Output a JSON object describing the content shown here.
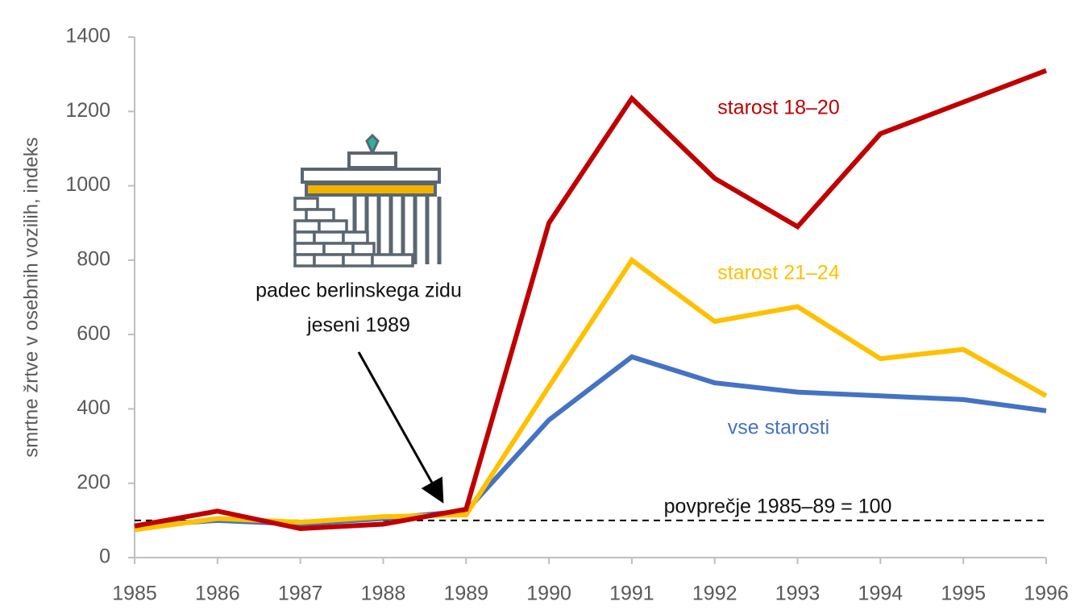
{
  "chart_data": {
    "type": "line",
    "y_label": "smrtne žrtve v osebnih vozilih, indeks",
    "x": [
      1985,
      1986,
      1987,
      1988,
      1989,
      1990,
      1991,
      1992,
      1993,
      1994,
      1995,
      1996
    ],
    "xlim": [
      1985,
      1996
    ],
    "xticks": [
      1985,
      1986,
      1987,
      1988,
      1989,
      1990,
      1991,
      1992,
      1993,
      1994,
      1995,
      1996
    ],
    "ylim": [
      0,
      1400
    ],
    "yticks": [
      0,
      200,
      400,
      600,
      800,
      1000,
      1200,
      1400
    ],
    "series": [
      {
        "name": "starost 18–20",
        "color": "#c00000",
        "values": [
          85,
          125,
          78,
          90,
          130,
          900,
          1235,
          1020,
          890,
          1140,
          1225,
          1310
        ]
      },
      {
        "name": "starost 21–24",
        "color": "#ffc000",
        "values": [
          75,
          105,
          95,
          110,
          115,
          460,
          800,
          635,
          675,
          535,
          560,
          435
        ]
      },
      {
        "name": "vse starosti",
        "color": "#4472c4",
        "values": [
          85,
          100,
          90,
          105,
          125,
          370,
          540,
          470,
          445,
          435,
          425,
          395
        ]
      }
    ],
    "reference_line": {
      "value": 100,
      "label": "povprečje 1985–89 = 100"
    },
    "annotation": [
      "padec berlinskega zidu",
      "jeseni 1989"
    ]
  }
}
